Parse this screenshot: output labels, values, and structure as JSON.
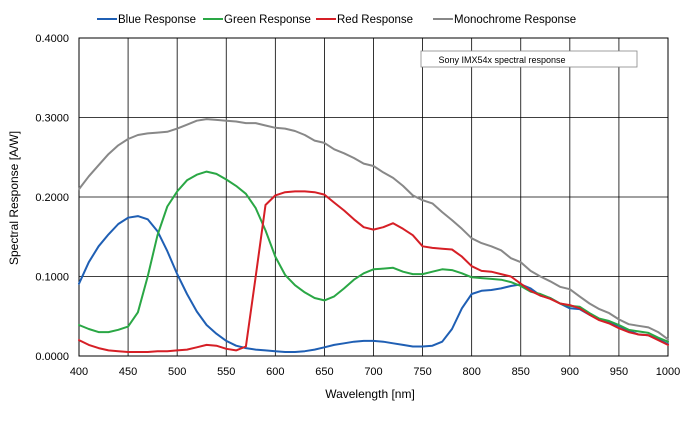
{
  "chart_data": {
    "type": "line",
    "title": "",
    "xlabel": "Wavelength [nm]",
    "ylabel": "Spectral Response [A/W]",
    "xlim": [
      400,
      1000
    ],
    "ylim": [
      0,
      0.4
    ],
    "xticks": [
      "400",
      "450",
      "500",
      "550",
      "600",
      "650",
      "700",
      "750",
      "800",
      "850",
      "900",
      "950",
      "1000"
    ],
    "yticks": [
      "0.0000",
      "0.1000",
      "0.2000",
      "0.3000",
      "0.4000"
    ],
    "annotation": "Sony IMX54x spectral response",
    "legend_position": "top",
    "grid": true,
    "series": [
      {
        "name": "Blue Response",
        "color": "#1f5fb4",
        "x": [
          400,
          410,
          420,
          430,
          440,
          450,
          460,
          470,
          480,
          490,
          500,
          510,
          520,
          530,
          540,
          550,
          560,
          570,
          580,
          590,
          600,
          610,
          620,
          630,
          640,
          650,
          660,
          670,
          680,
          690,
          700,
          710,
          720,
          730,
          740,
          750,
          760,
          770,
          780,
          790,
          800,
          810,
          820,
          830,
          840,
          850,
          860,
          870,
          880,
          890,
          900,
          910,
          920,
          930,
          940,
          950,
          960,
          970,
          980,
          990,
          1000
        ],
        "values": [
          0.091,
          0.118,
          0.138,
          0.153,
          0.166,
          0.174,
          0.176,
          0.172,
          0.157,
          0.132,
          0.103,
          0.078,
          0.056,
          0.039,
          0.028,
          0.019,
          0.013,
          0.01,
          0.008,
          0.007,
          0.006,
          0.005,
          0.005,
          0.006,
          0.008,
          0.011,
          0.014,
          0.016,
          0.018,
          0.019,
          0.019,
          0.018,
          0.016,
          0.014,
          0.012,
          0.012,
          0.013,
          0.018,
          0.034,
          0.06,
          0.078,
          0.082,
          0.083,
          0.085,
          0.088,
          0.09,
          0.085,
          0.076,
          0.073,
          0.066,
          0.06,
          0.059,
          0.052,
          0.046,
          0.042,
          0.038,
          0.032,
          0.027,
          0.026,
          0.021,
          0.015
        ]
      },
      {
        "name": "Green Response",
        "color": "#2aa745",
        "x": [
          400,
          410,
          420,
          430,
          440,
          450,
          460,
          470,
          480,
          490,
          500,
          510,
          520,
          530,
          540,
          550,
          560,
          570,
          580,
          590,
          600,
          610,
          620,
          630,
          640,
          650,
          660,
          670,
          680,
          690,
          700,
          710,
          720,
          730,
          740,
          750,
          760,
          770,
          780,
          790,
          800,
          810,
          820,
          830,
          840,
          850,
          860,
          870,
          880,
          890,
          900,
          910,
          920,
          930,
          940,
          950,
          960,
          970,
          980,
          990,
          1000
        ],
        "values": [
          0.039,
          0.034,
          0.03,
          0.03,
          0.033,
          0.037,
          0.055,
          0.1,
          0.152,
          0.188,
          0.207,
          0.221,
          0.228,
          0.232,
          0.229,
          0.222,
          0.214,
          0.204,
          0.186,
          0.158,
          0.125,
          0.102,
          0.089,
          0.08,
          0.073,
          0.07,
          0.075,
          0.085,
          0.096,
          0.104,
          0.109,
          0.11,
          0.111,
          0.106,
          0.103,
          0.103,
          0.106,
          0.109,
          0.108,
          0.104,
          0.099,
          0.098,
          0.097,
          0.096,
          0.093,
          0.088,
          0.081,
          0.078,
          0.073,
          0.066,
          0.063,
          0.062,
          0.054,
          0.047,
          0.044,
          0.039,
          0.033,
          0.031,
          0.029,
          0.023,
          0.018
        ]
      },
      {
        "name": "Red Response",
        "color": "#d61f26",
        "x": [
          400,
          410,
          420,
          430,
          440,
          450,
          460,
          470,
          480,
          490,
          500,
          510,
          520,
          530,
          540,
          550,
          560,
          570,
          580,
          590,
          600,
          610,
          620,
          630,
          640,
          650,
          660,
          670,
          680,
          690,
          700,
          710,
          720,
          730,
          740,
          750,
          760,
          770,
          780,
          790,
          800,
          810,
          820,
          830,
          840,
          850,
          860,
          870,
          880,
          890,
          900,
          910,
          920,
          930,
          940,
          950,
          960,
          970,
          980,
          990,
          1000
        ],
        "values": [
          0.02,
          0.014,
          0.01,
          0.007,
          0.006,
          0.005,
          0.005,
          0.005,
          0.006,
          0.006,
          0.007,
          0.008,
          0.011,
          0.014,
          0.013,
          0.009,
          0.007,
          0.012,
          0.1,
          0.19,
          0.202,
          0.206,
          0.207,
          0.207,
          0.206,
          0.203,
          0.193,
          0.183,
          0.172,
          0.162,
          0.159,
          0.162,
          0.167,
          0.16,
          0.152,
          0.138,
          0.136,
          0.135,
          0.134,
          0.125,
          0.113,
          0.107,
          0.106,
          0.103,
          0.1,
          0.091,
          0.082,
          0.076,
          0.072,
          0.066,
          0.064,
          0.06,
          0.052,
          0.045,
          0.041,
          0.035,
          0.03,
          0.027,
          0.026,
          0.02,
          0.014
        ]
      },
      {
        "name": "Monochrome Response",
        "color": "#888888",
        "x": [
          400,
          410,
          420,
          430,
          440,
          450,
          460,
          470,
          480,
          490,
          500,
          510,
          520,
          530,
          540,
          550,
          560,
          570,
          580,
          590,
          600,
          610,
          620,
          630,
          640,
          650,
          660,
          670,
          680,
          690,
          700,
          710,
          720,
          730,
          740,
          750,
          760,
          770,
          780,
          790,
          800,
          810,
          820,
          830,
          840,
          850,
          860,
          870,
          880,
          890,
          900,
          910,
          920,
          930,
          940,
          950,
          960,
          970,
          980,
          990,
          1000
        ],
        "values": [
          0.21,
          0.226,
          0.24,
          0.254,
          0.265,
          0.273,
          0.278,
          0.28,
          0.281,
          0.282,
          0.286,
          0.291,
          0.296,
          0.298,
          0.297,
          0.296,
          0.295,
          0.293,
          0.293,
          0.29,
          0.287,
          0.286,
          0.283,
          0.278,
          0.271,
          0.268,
          0.26,
          0.255,
          0.249,
          0.242,
          0.239,
          0.231,
          0.224,
          0.214,
          0.202,
          0.196,
          0.192,
          0.181,
          0.171,
          0.16,
          0.148,
          0.142,
          0.138,
          0.133,
          0.123,
          0.118,
          0.107,
          0.1,
          0.094,
          0.087,
          0.084,
          0.075,
          0.066,
          0.059,
          0.054,
          0.046,
          0.04,
          0.038,
          0.036,
          0.03,
          0.021
        ]
      }
    ]
  }
}
